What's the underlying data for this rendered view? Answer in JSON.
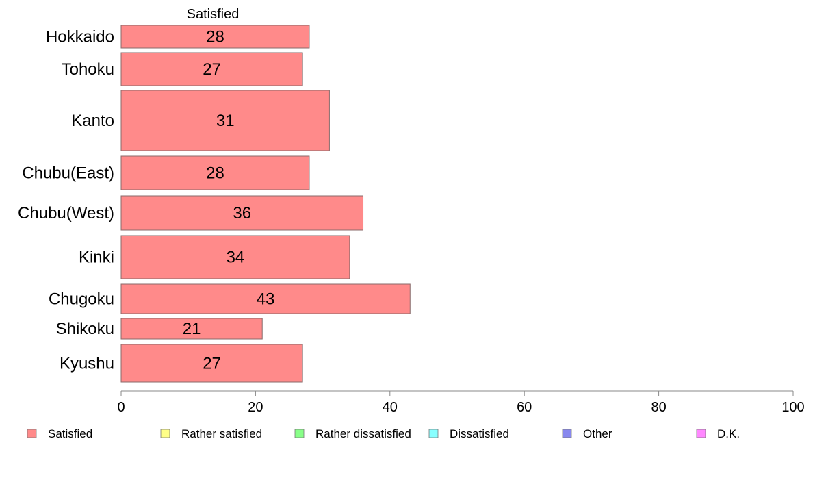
{
  "chart_data": {
    "type": "bar",
    "orientation": "horizontal",
    "column_heading": "Satisfied",
    "categories": [
      "Hokkaido",
      "Tohoku",
      "Kanto",
      "Chubu(East)",
      "Chubu(West)",
      "Kinki",
      "Chugoku",
      "Shikoku",
      "Kyushu"
    ],
    "series": [
      {
        "name": "Satisfied",
        "values": [
          28,
          27,
          31,
          28,
          36,
          34,
          43,
          21,
          27
        ],
        "color": "#ff8a8a"
      }
    ],
    "xlim": [
      0,
      100
    ],
    "x_ticks": [
      0,
      20,
      40,
      60,
      80,
      100
    ],
    "legend": {
      "position": "bottom",
      "items": [
        {
          "name": "Satisfied",
          "color": "#ff8a8a"
        },
        {
          "name": "Rather satisfied",
          "color": "#ffff88"
        },
        {
          "name": "Rather dissatisfied",
          "color": "#88ff88"
        },
        {
          "name": "Dissatisfied",
          "color": "#88ffff"
        },
        {
          "name": "Other",
          "color": "#8888ee"
        },
        {
          "name": "D.K.",
          "color": "#ff88ff"
        }
      ]
    },
    "grid": false
  }
}
